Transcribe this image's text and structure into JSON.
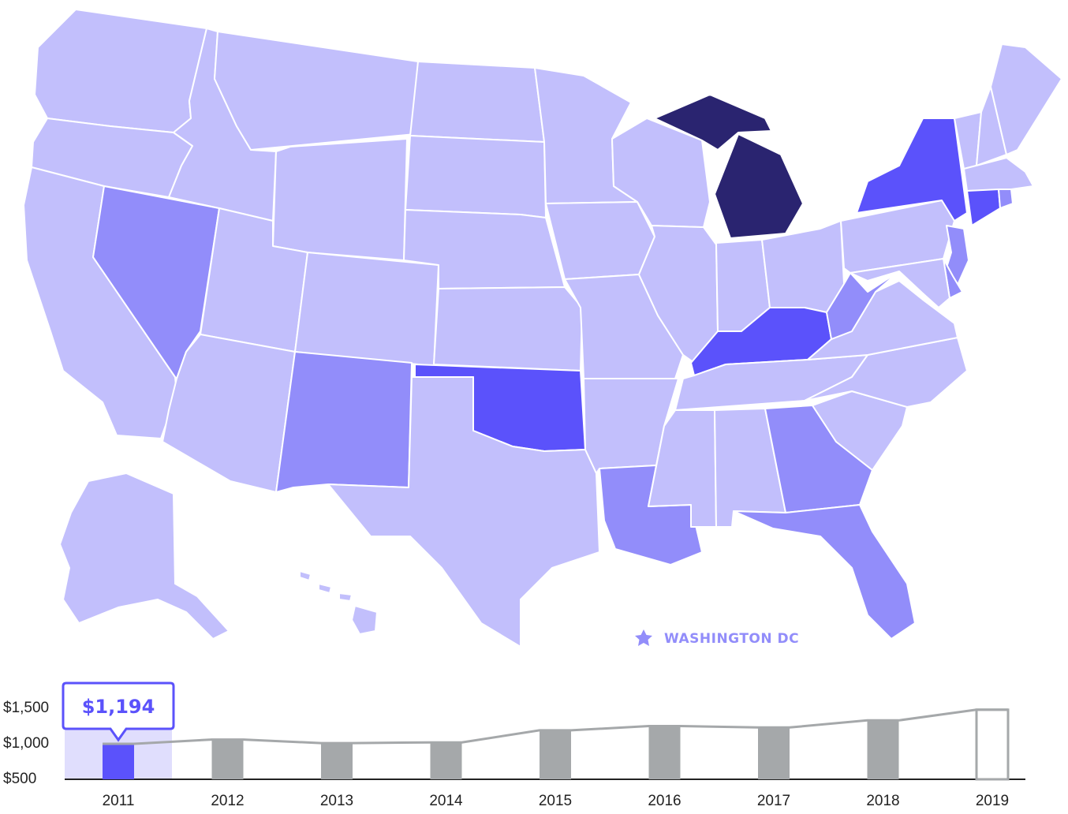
{
  "colors": {
    "level1": "#c2bffc",
    "level2": "#928dfa",
    "level3": "#5b52fb",
    "level4": "#2a2470",
    "bar_gray": "#a5a8aa",
    "bar_active": "#5b52fb",
    "highlight": "#e0defd",
    "line": "#a5a8aa",
    "dc": "#928dfa"
  },
  "map": {
    "dc_label": "WASHINGTON DC",
    "dc_icon": "star-icon",
    "states": [
      {
        "id": "WA",
        "level": 1
      },
      {
        "id": "OR",
        "level": 1
      },
      {
        "id": "CA",
        "level": 1
      },
      {
        "id": "NV",
        "level": 2
      },
      {
        "id": "ID",
        "level": 1
      },
      {
        "id": "MT",
        "level": 1
      },
      {
        "id": "WY",
        "level": 1
      },
      {
        "id": "UT",
        "level": 1
      },
      {
        "id": "AZ",
        "level": 1
      },
      {
        "id": "CO",
        "level": 1
      },
      {
        "id": "NM",
        "level": 2
      },
      {
        "id": "ND",
        "level": 1
      },
      {
        "id": "SD",
        "level": 1
      },
      {
        "id": "NE",
        "level": 1
      },
      {
        "id": "KS",
        "level": 1
      },
      {
        "id": "OK",
        "level": 3
      },
      {
        "id": "TX",
        "level": 1
      },
      {
        "id": "MN",
        "level": 1
      },
      {
        "id": "IA",
        "level": 1
      },
      {
        "id": "MO",
        "level": 1
      },
      {
        "id": "AR",
        "level": 1
      },
      {
        "id": "LA",
        "level": 2
      },
      {
        "id": "WI",
        "level": 1
      },
      {
        "id": "IL",
        "level": 1
      },
      {
        "id": "MI",
        "level": 4
      },
      {
        "id": "IN",
        "level": 1
      },
      {
        "id": "OH",
        "level": 1
      },
      {
        "id": "KY",
        "level": 3
      },
      {
        "id": "TN",
        "level": 1
      },
      {
        "id": "MS",
        "level": 1
      },
      {
        "id": "AL",
        "level": 1
      },
      {
        "id": "GA",
        "level": 2
      },
      {
        "id": "FL",
        "level": 2
      },
      {
        "id": "SC",
        "level": 1
      },
      {
        "id": "NC",
        "level": 1
      },
      {
        "id": "VA",
        "level": 1
      },
      {
        "id": "WV",
        "level": 2
      },
      {
        "id": "PA",
        "level": 1
      },
      {
        "id": "NY",
        "level": 3
      },
      {
        "id": "VT",
        "level": 1
      },
      {
        "id": "NH",
        "level": 1
      },
      {
        "id": "ME",
        "level": 1
      },
      {
        "id": "MA",
        "level": 1
      },
      {
        "id": "CT",
        "level": 3
      },
      {
        "id": "RI",
        "level": 2
      },
      {
        "id": "NJ",
        "level": 2
      },
      {
        "id": "DE",
        "level": 2
      },
      {
        "id": "MD",
        "level": 1
      },
      {
        "id": "AK",
        "level": 1
      },
      {
        "id": "HI",
        "level": 1
      }
    ]
  },
  "timeline": {
    "y_labels": [
      "$1,500",
      "$1,000",
      "$500"
    ],
    "tooltip": "$1,194",
    "selected_year": "2011",
    "years": [
      "2011",
      "2012",
      "2013",
      "2014",
      "2015",
      "2016",
      "2017",
      "2018",
      "2019"
    ],
    "values": [
      1000,
      1060,
      1010,
      1020,
      1190,
      1250,
      1230,
      1330,
      1480
    ],
    "y_range": [
      500,
      1500
    ],
    "last_outlined": true
  }
}
